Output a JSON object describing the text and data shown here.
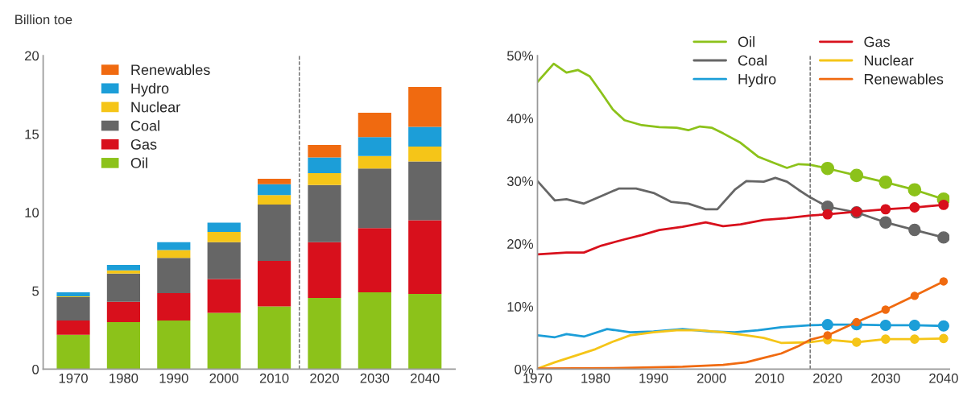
{
  "chart_data": [
    {
      "type": "bar",
      "stacked": true,
      "ylabel": "Billion toe",
      "x": [
        1970,
        1980,
        1990,
        2000,
        2010,
        2020,
        2030,
        2040
      ],
      "xlim": [
        1964,
        2046
      ],
      "xticks": [
        1970,
        1980,
        1990,
        2000,
        2010,
        2020,
        2030,
        2040
      ],
      "ylim": [
        0,
        20
      ],
      "yticks": [
        0,
        5,
        10,
        15,
        20
      ],
      "legend": "top left",
      "grid": false,
      "ref_lines": [
        {
          "axis": "x",
          "value": 2015,
          "color": "#555555",
          "line_style": "dashed"
        }
      ],
      "series": [
        {
          "name": "Oil",
          "color": "#8cc21a",
          "values": [
            2.2,
            3.0,
            3.1,
            3.6,
            4.0,
            4.55,
            4.9,
            4.8
          ]
        },
        {
          "name": "Gas",
          "color": "#d8101c",
          "values": [
            0.9,
            1.3,
            1.75,
            2.15,
            2.9,
            3.55,
            4.1,
            4.7
          ]
        },
        {
          "name": "Coal",
          "color": "#666666",
          "values": [
            1.5,
            1.8,
            2.25,
            2.35,
            3.6,
            3.65,
            3.8,
            3.75
          ]
        },
        {
          "name": "Nuclear",
          "color": "#f5c518",
          "values": [
            0.05,
            0.2,
            0.5,
            0.65,
            0.6,
            0.75,
            0.8,
            0.95
          ]
        },
        {
          "name": "Hydro",
          "color": "#1c9ed8",
          "values": [
            0.25,
            0.35,
            0.5,
            0.6,
            0.7,
            1.0,
            1.2,
            1.25
          ]
        },
        {
          "name": "Renewables",
          "color": "#f06a10",
          "values": [
            0,
            0,
            0,
            0,
            0.35,
            0.8,
            1.55,
            2.55
          ]
        }
      ]
    },
    {
      "type": "line",
      "xlim": [
        1970,
        2041
      ],
      "xticks": [
        1970,
        1980,
        1990,
        2000,
        2010,
        2020,
        2030,
        2040
      ],
      "ylim": [
        0,
        50
      ],
      "yticks": [
        {
          "value": 0,
          "label": "0%"
        },
        {
          "value": 10,
          "label": "10%"
        },
        {
          "value": 20,
          "label": "20%"
        },
        {
          "value": 30,
          "label": "30%"
        },
        {
          "value": 40,
          "label": "40%"
        },
        {
          "value": 50,
          "label": "50%"
        }
      ],
      "legend": "top right",
      "grid": false,
      "ref_lines": [
        {
          "axis": "x",
          "value": 2017,
          "color": "#555555",
          "line_style": "dashed"
        }
      ],
      "series": [
        {
          "name": "Oil",
          "color": "#8cc21a",
          "marker": "none",
          "x": [
            1970,
            1972.8,
            1975,
            1977,
            1979,
            1981,
            1983,
            1985,
            1988,
            1991,
            1994,
            1996,
            1998,
            2000,
            2002,
            2005,
            2008,
            2011,
            2013,
            2015,
            2017,
            2020
          ],
          "values": [
            45.8,
            48.7,
            47.3,
            47.7,
            46.7,
            44.1,
            41.4,
            39.7,
            38.9,
            38.6,
            38.5,
            38.1,
            38.7,
            38.5,
            37.6,
            36.1,
            33.9,
            32.8,
            32.1,
            32.7,
            32.6,
            32.0
          ]
        },
        {
          "name": "Coal",
          "color": "#666666",
          "marker": "none",
          "x": [
            1970,
            1973,
            1975,
            1978,
            1981,
            1984,
            1987,
            1990,
            1993,
            1996,
            1999,
            2001,
            2004,
            2006,
            2009,
            2011,
            2013,
            2015,
            2017,
            2020
          ],
          "values": [
            30.0,
            26.9,
            27.1,
            26.4,
            27.6,
            28.8,
            28.8,
            28.1,
            26.7,
            26.4,
            25.5,
            25.5,
            28.6,
            30.0,
            29.9,
            30.5,
            29.9,
            28.6,
            27.4,
            25.9
          ]
        },
        {
          "name": "Hydro",
          "color": "#1c9ed8",
          "marker": "none",
          "x": [
            1970,
            1973,
            1975,
            1978,
            1982,
            1986,
            1990,
            1995,
            2000,
            2004,
            2008,
            2012,
            2017,
            2020
          ],
          "values": [
            5.4,
            5.1,
            5.6,
            5.2,
            6.4,
            5.9,
            6.0,
            6.4,
            6.0,
            5.9,
            6.2,
            6.7,
            7.0,
            7.1
          ]
        },
        {
          "name": "Gas",
          "color": "#d8101c",
          "marker": "none",
          "x": [
            1970,
            1975,
            1978,
            1981,
            1985,
            1988,
            1991,
            1995,
            1999,
            2002,
            2005,
            2009,
            2013,
            2017,
            2020
          ],
          "values": [
            18.3,
            18.6,
            18.6,
            19.7,
            20.7,
            21.4,
            22.2,
            22.7,
            23.4,
            22.8,
            23.1,
            23.8,
            24.1,
            24.5,
            24.7
          ]
        },
        {
          "name": "Nuclear",
          "color": "#f5c518",
          "marker": "none",
          "x": [
            1970,
            1973,
            1977,
            1980,
            1983,
            1986,
            1990,
            1994,
            1998,
            2002,
            2006,
            2009,
            2012,
            2017,
            2020
          ],
          "values": [
            0.1,
            1.1,
            2.3,
            3.2,
            4.4,
            5.4,
            5.9,
            6.2,
            6.2,
            5.9,
            5.4,
            5.0,
            4.2,
            4.3,
            4.7
          ]
        },
        {
          "name": "Renewables",
          "color": "#f06a10",
          "marker": "none",
          "x": [
            1970,
            1985,
            1995,
            2002,
            2006,
            2009,
            2012,
            2015,
            2017,
            2020
          ],
          "values": [
            0.1,
            0.2,
            0.4,
            0.7,
            1.1,
            1.8,
            2.5,
            3.7,
            4.7,
            5.4
          ]
        },
        {
          "color": "#8cc21a",
          "marker": "circle",
          "x": [
            2020,
            2025,
            2030,
            2035,
            2040
          ],
          "values": [
            32.0,
            30.9,
            29.8,
            28.6,
            27.1
          ]
        },
        {
          "color": "#666666",
          "marker": "circle",
          "x": [
            2020,
            2025,
            2030,
            2035,
            2040
          ],
          "values": [
            25.9,
            25.0,
            23.4,
            22.2,
            21.0
          ]
        },
        {
          "color": "#1c9ed8",
          "marker": "circle",
          "x": [
            2020,
            2025,
            2030,
            2035,
            2040
          ],
          "values": [
            7.1,
            7.1,
            7.0,
            7.0,
            6.9
          ]
        },
        {
          "color": "#d8101c",
          "marker": "circle",
          "x": [
            2020,
            2025,
            2030,
            2035,
            2040
          ],
          "values": [
            24.7,
            25.1,
            25.5,
            25.8,
            26.2
          ]
        },
        {
          "color": "#f5c518",
          "marker": "circle",
          "x": [
            2020,
            2025,
            2030,
            2035,
            2040
          ],
          "values": [
            4.7,
            4.3,
            4.8,
            4.8,
            4.9
          ]
        },
        {
          "color": "#f06a10",
          "marker": "circle",
          "x": [
            2020,
            2025,
            2030,
            2035,
            2040
          ],
          "values": [
            5.4,
            7.5,
            9.5,
            11.7,
            14.0
          ]
        }
      ]
    }
  ]
}
